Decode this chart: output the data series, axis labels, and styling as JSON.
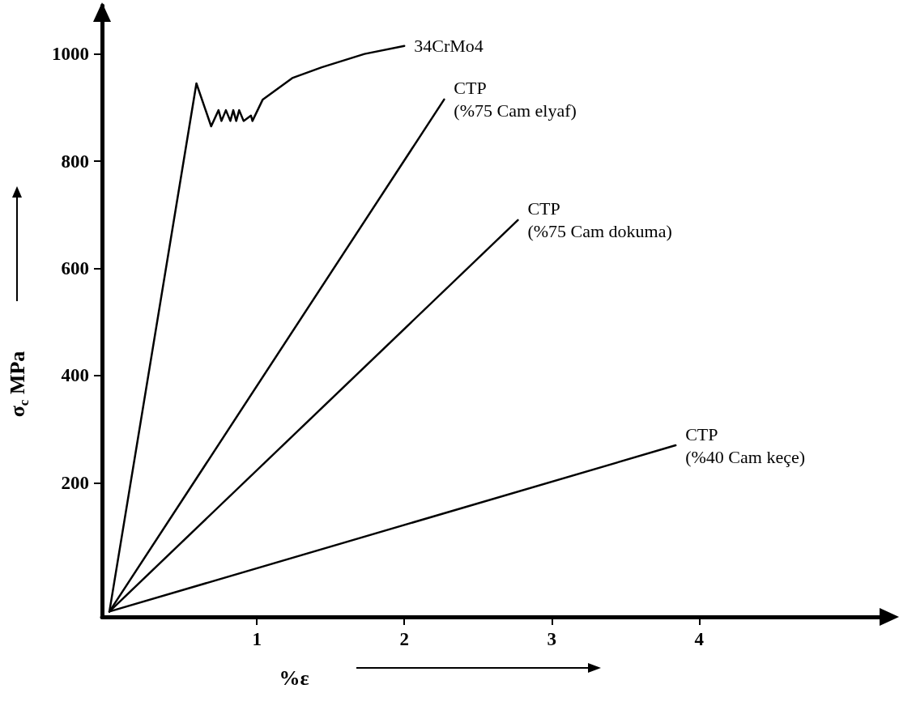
{
  "chart_data": {
    "type": "line",
    "xlabel": "%ε",
    "ylabel": "σ$_{c}$ MPa",
    "xlim": [
      -0.05,
      5.3
    ],
    "ylim": [
      -50,
      1090
    ],
    "xticks": [
      1,
      2,
      3,
      4
    ],
    "yticks": [
      200,
      400,
      600,
      800,
      1000
    ],
    "grid": false,
    "marker": "none",
    "line_style": "solid",
    "series": [
      {
        "name": "34CrMo4",
        "color": "#000000",
        "x": [
          0,
          0.59,
          0.69,
          0.74,
          0.76,
          0.79,
          0.82,
          0.84,
          0.86,
          0.88,
          0.91,
          0.96,
          0.97,
          1.04,
          1.24,
          1.44,
          1.73,
          2.0
        ],
        "values": [
          -40,
          945,
          865,
          895,
          875,
          895,
          875,
          895,
          875,
          895,
          875,
          885,
          875,
          915,
          955,
          975,
          1000,
          1015
        ]
      },
      {
        "name": "CTP\n(%75 Cam elyaf)",
        "color": "#000000",
        "x": [
          0,
          2.27
        ],
        "values": [
          -40,
          915
        ]
      },
      {
        "name": "CTP\n(%75 Cam dokuma)",
        "color": "#000000",
        "x": [
          0,
          2.77
        ],
        "values": [
          -40,
          690
        ]
      },
      {
        "name": "CTP\n(%40 Cam keçe)",
        "color": "#000000",
        "x": [
          0,
          3.84
        ],
        "values": [
          -40,
          270
        ]
      }
    ]
  }
}
